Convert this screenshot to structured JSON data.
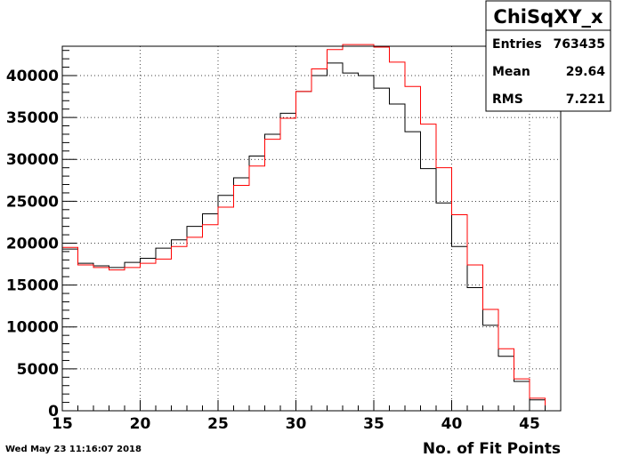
{
  "timestamp": "Wed May 23 11:16:07 2018",
  "stats": {
    "title": "ChiSqXY_x",
    "rows": [
      {
        "label": "Entries",
        "value": "763435"
      },
      {
        "label": "Mean",
        "value": "29.64"
      },
      {
        "label": "RMS",
        "value": "7.221"
      }
    ]
  },
  "chart_data": {
    "type": "histogram",
    "title": "",
    "xlabel": "No. of Fit Points",
    "ylabel": "",
    "xlim": [
      15,
      47
    ],
    "ylim": [
      0,
      43500
    ],
    "grid": true,
    "bins": [
      15,
      16,
      17,
      18,
      19,
      20,
      21,
      22,
      23,
      24,
      25,
      26,
      27,
      28,
      29,
      30,
      31,
      32,
      33,
      34,
      35,
      36,
      37,
      38,
      39,
      40,
      41,
      42,
      43,
      44,
      45,
      46,
      47
    ],
    "x_ticks": [
      15,
      20,
      25,
      30,
      35,
      40,
      45
    ],
    "y_ticks": [
      0,
      5000,
      10000,
      15000,
      20000,
      25000,
      30000,
      35000,
      40000
    ],
    "series": [
      {
        "color": "#000000",
        "values": [
          19300,
          17600,
          17300,
          17100,
          17700,
          18200,
          19400,
          20400,
          22000,
          23500,
          25700,
          27800,
          30400,
          33000,
          35500,
          38100,
          40000,
          41500,
          40300,
          40000,
          38500,
          36600,
          33300,
          28900,
          24800,
          19600,
          14700,
          10200,
          6500,
          3500,
          1300,
          0
        ]
      },
      {
        "color": "#ff0000",
        "values": [
          19500,
          17400,
          17100,
          16800,
          17100,
          17600,
          18100,
          19600,
          20700,
          22200,
          24300,
          26900,
          29200,
          32400,
          34900,
          38100,
          40800,
          43100,
          43700,
          43700,
          43400,
          41600,
          38700,
          34200,
          29000,
          23400,
          17400,
          12100,
          7400,
          3800,
          1500,
          0
        ]
      }
    ]
  }
}
